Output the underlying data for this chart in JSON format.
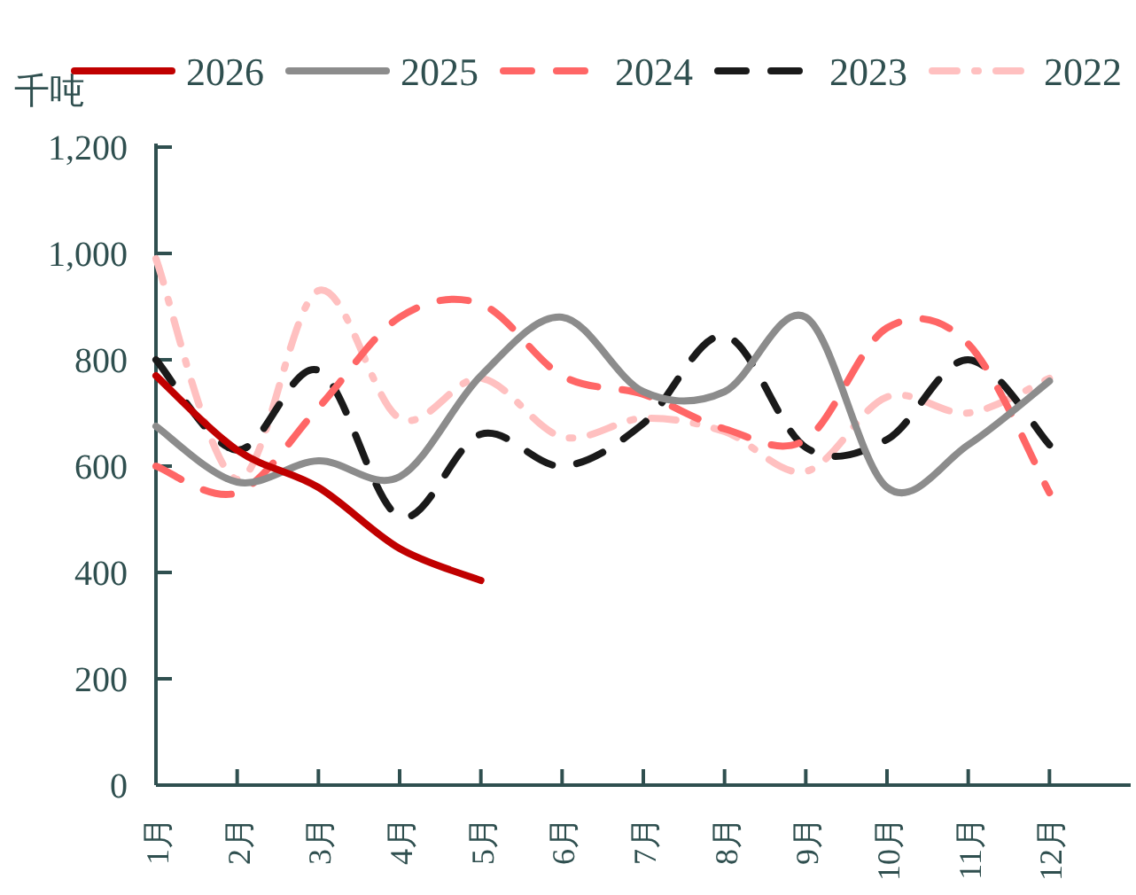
{
  "chart_data": {
    "type": "line",
    "ylabel": "千吨",
    "categories": [
      "1月",
      "2月",
      "3月",
      "4月",
      "5月",
      "6月",
      "7月",
      "8月",
      "9月",
      "10月",
      "11月",
      "12月"
    ],
    "ylim": [
      0,
      1200
    ],
    "yticks": [
      0,
      200,
      400,
      600,
      800,
      {
        "value": 1000,
        "label": "1,000"
      },
      {
        "value": 1200,
        "label": "1,200"
      }
    ],
    "grid": false,
    "legend": "top",
    "marker": "none",
    "series": [
      {
        "name": "2026",
        "color": "#c00000",
        "line_style": "solid",
        "values": [
          770,
          630,
          560,
          445,
          385,
          null,
          null,
          null,
          null,
          null,
          null,
          null
        ]
      },
      {
        "name": "2025",
        "color": "#8c8c8c",
        "line_style": "solid",
        "values": [
          675,
          570,
          610,
          580,
          770,
          880,
          740,
          740,
          880,
          560,
          640,
          760
        ]
      },
      {
        "name": "2024",
        "color": "#ff6666",
        "line_style": "dashed",
        "values": [
          600,
          550,
          710,
          880,
          905,
          770,
          735,
          670,
          650,
          860,
          830,
          550
        ]
      },
      {
        "name": "2023",
        "color": "#1a1a1a",
        "line_style": "dashed",
        "values": [
          800,
          630,
          780,
          505,
          660,
          600,
          680,
          845,
          635,
          650,
          800,
          640
        ]
      },
      {
        "name": "2022",
        "color": "#ffc0c0",
        "line_style": "dashdot",
        "values": [
          990,
          575,
          930,
          690,
          765,
          655,
          690,
          665,
          590,
          730,
          700,
          765
        ]
      }
    ]
  }
}
